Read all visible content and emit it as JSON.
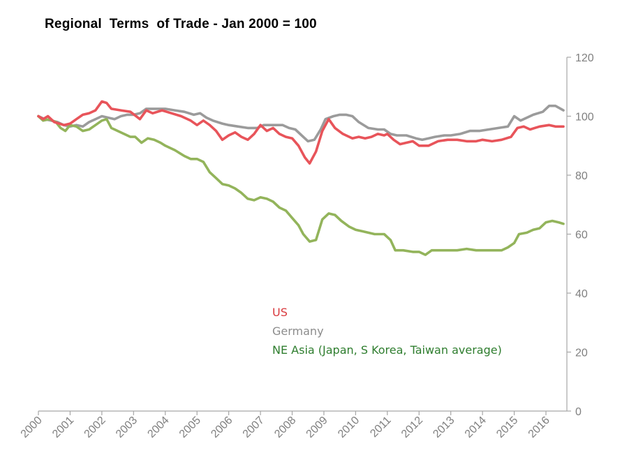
{
  "chart_data": {
    "type": "line",
    "title": "Regional  Terms  of Trade - Jan 2000 = 100",
    "xlabel": "",
    "ylabel": "",
    "xlim": [
      2000.0,
      2016.55
    ],
    "ylim": [
      0,
      120
    ],
    "yticks": [
      0,
      20,
      40,
      60,
      80,
      100,
      120
    ],
    "xticks": [
      "2000",
      "2001",
      "2002",
      "2003",
      "2004",
      "2005",
      "2006",
      "2007",
      "2008",
      "2009",
      "2010",
      "2011",
      "2012",
      "2013",
      "2014",
      "2015",
      "2016"
    ],
    "y_axis_position": "right",
    "grid": false,
    "legend_placement": "center",
    "series": [
      {
        "name": "US",
        "color": "#e8545a",
        "points": [
          [
            2000.0,
            100
          ],
          [
            2000.15,
            99
          ],
          [
            2000.3,
            100
          ],
          [
            2000.5,
            98
          ],
          [
            2000.8,
            97
          ],
          [
            2001.0,
            97.5
          ],
          [
            2001.2,
            99
          ],
          [
            2001.4,
            100.5
          ],
          [
            2001.6,
            101
          ],
          [
            2001.8,
            102
          ],
          [
            2002.0,
            105
          ],
          [
            2002.15,
            104.5
          ],
          [
            2002.3,
            102.5
          ],
          [
            2002.6,
            102
          ],
          [
            2002.9,
            101.5
          ],
          [
            2003.2,
            99
          ],
          [
            2003.4,
            102
          ],
          [
            2003.6,
            101
          ],
          [
            2003.9,
            102
          ],
          [
            2004.2,
            101
          ],
          [
            2004.5,
            100
          ],
          [
            2004.8,
            98.5
          ],
          [
            2005.0,
            97
          ],
          [
            2005.2,
            98.5
          ],
          [
            2005.4,
            97
          ],
          [
            2005.6,
            95
          ],
          [
            2005.8,
            92
          ],
          [
            2006.0,
            93.5
          ],
          [
            2006.2,
            94.5
          ],
          [
            2006.4,
            93
          ],
          [
            2006.6,
            92
          ],
          [
            2006.8,
            94
          ],
          [
            2007.0,
            97
          ],
          [
            2007.2,
            95
          ],
          [
            2007.4,
            96
          ],
          [
            2007.6,
            94
          ],
          [
            2007.8,
            93
          ],
          [
            2008.0,
            92.5
          ],
          [
            2008.2,
            90
          ],
          [
            2008.4,
            86
          ],
          [
            2008.55,
            84
          ],
          [
            2008.75,
            88
          ],
          [
            2008.95,
            95
          ],
          [
            2009.15,
            99
          ],
          [
            2009.35,
            96
          ],
          [
            2009.6,
            94
          ],
          [
            2009.9,
            92.5
          ],
          [
            2010.1,
            93
          ],
          [
            2010.3,
            92.5
          ],
          [
            2010.5,
            93
          ],
          [
            2010.7,
            94
          ],
          [
            2010.9,
            93.5
          ],
          [
            2011.0,
            94
          ],
          [
            2011.2,
            92
          ],
          [
            2011.4,
            90.5
          ],
          [
            2011.6,
            91
          ],
          [
            2011.8,
            91.5
          ],
          [
            2012.0,
            90
          ],
          [
            2012.3,
            90
          ],
          [
            2012.6,
            91.5
          ],
          [
            2012.9,
            92
          ],
          [
            2013.2,
            92
          ],
          [
            2013.5,
            91.5
          ],
          [
            2013.8,
            91.5
          ],
          [
            2014.0,
            92
          ],
          [
            2014.3,
            91.5
          ],
          [
            2014.6,
            92
          ],
          [
            2014.9,
            93
          ],
          [
            2015.1,
            96
          ],
          [
            2015.3,
            96.5
          ],
          [
            2015.5,
            95.5
          ],
          [
            2015.8,
            96.5
          ],
          [
            2016.1,
            97
          ],
          [
            2016.3,
            96.5
          ],
          [
            2016.55,
            96.5
          ]
        ]
      },
      {
        "name": "Germany",
        "color": "#9b9b9b",
        "points": [
          [
            2000.0,
            100
          ],
          [
            2000.2,
            99
          ],
          [
            2000.4,
            98.5
          ],
          [
            2000.6,
            98
          ],
          [
            2000.8,
            97
          ],
          [
            2001.0,
            96.5
          ],
          [
            2001.2,
            97
          ],
          [
            2001.4,
            96.5
          ],
          [
            2001.6,
            98
          ],
          [
            2001.8,
            99
          ],
          [
            2002.0,
            100
          ],
          [
            2002.2,
            99.5
          ],
          [
            2002.4,
            99
          ],
          [
            2002.6,
            100
          ],
          [
            2002.8,
            100.5
          ],
          [
            2003.0,
            100.5
          ],
          [
            2003.2,
            101
          ],
          [
            2003.4,
            102.5
          ],
          [
            2003.7,
            102.5
          ],
          [
            2004.0,
            102.5
          ],
          [
            2004.3,
            102
          ],
          [
            2004.6,
            101.5
          ],
          [
            2004.9,
            100.5
          ],
          [
            2005.1,
            101
          ],
          [
            2005.3,
            99.5
          ],
          [
            2005.5,
            98.5
          ],
          [
            2005.8,
            97.5
          ],
          [
            2006.0,
            97
          ],
          [
            2006.3,
            96.5
          ],
          [
            2006.6,
            96
          ],
          [
            2006.9,
            96
          ],
          [
            2007.1,
            97
          ],
          [
            2007.4,
            97
          ],
          [
            2007.7,
            97
          ],
          [
            2007.9,
            96
          ],
          [
            2008.1,
            95.5
          ],
          [
            2008.3,
            93.5
          ],
          [
            2008.5,
            91.5
          ],
          [
            2008.7,
            92
          ],
          [
            2008.9,
            95.5
          ],
          [
            2009.05,
            99
          ],
          [
            2009.3,
            100
          ],
          [
            2009.5,
            100.5
          ],
          [
            2009.7,
            100.5
          ],
          [
            2009.9,
            100
          ],
          [
            2010.1,
            98
          ],
          [
            2010.4,
            96
          ],
          [
            2010.7,
            95.5
          ],
          [
            2010.9,
            95.5
          ],
          [
            2011.1,
            94
          ],
          [
            2011.3,
            93.5
          ],
          [
            2011.6,
            93.5
          ],
          [
            2011.9,
            92.5
          ],
          [
            2012.1,
            92
          ],
          [
            2012.3,
            92.5
          ],
          [
            2012.5,
            93
          ],
          [
            2012.8,
            93.5
          ],
          [
            2013.0,
            93.5
          ],
          [
            2013.3,
            94
          ],
          [
            2013.6,
            95
          ],
          [
            2013.9,
            95
          ],
          [
            2014.2,
            95.5
          ],
          [
            2014.5,
            96
          ],
          [
            2014.8,
            96.5
          ],
          [
            2015.0,
            100
          ],
          [
            2015.2,
            98.5
          ],
          [
            2015.4,
            99.5
          ],
          [
            2015.6,
            100.5
          ],
          [
            2015.9,
            101.5
          ],
          [
            2016.1,
            103.5
          ],
          [
            2016.3,
            103.5
          ],
          [
            2016.55,
            102
          ]
        ]
      },
      {
        "name": "NE Asia (Japan, S Korea, Taiwan average)",
        "color": "#93b45b",
        "points": [
          [
            2000.0,
            100
          ],
          [
            2000.15,
            98.5
          ],
          [
            2000.35,
            99
          ],
          [
            2000.55,
            98
          ],
          [
            2000.7,
            96
          ],
          [
            2000.85,
            95
          ],
          [
            2001.0,
            97
          ],
          [
            2001.2,
            96.5
          ],
          [
            2001.4,
            95
          ],
          [
            2001.6,
            95.5
          ],
          [
            2001.8,
            97
          ],
          [
            2002.0,
            98.5
          ],
          [
            2002.15,
            99
          ],
          [
            2002.3,
            96
          ],
          [
            2002.5,
            95
          ],
          [
            2002.7,
            94
          ],
          [
            2002.9,
            93
          ],
          [
            2003.05,
            93
          ],
          [
            2003.25,
            91
          ],
          [
            2003.45,
            92.5
          ],
          [
            2003.65,
            92
          ],
          [
            2003.85,
            91
          ],
          [
            2004.0,
            90
          ],
          [
            2004.3,
            88.5
          ],
          [
            2004.6,
            86.5
          ],
          [
            2004.8,
            85.5
          ],
          [
            2005.0,
            85.5
          ],
          [
            2005.2,
            84.5
          ],
          [
            2005.4,
            81
          ],
          [
            2005.6,
            79
          ],
          [
            2005.8,
            77
          ],
          [
            2006.0,
            76.5
          ],
          [
            2006.2,
            75.5
          ],
          [
            2006.4,
            74
          ],
          [
            2006.6,
            72
          ],
          [
            2006.8,
            71.5
          ],
          [
            2007.0,
            72.5
          ],
          [
            2007.2,
            72
          ],
          [
            2007.4,
            71
          ],
          [
            2007.6,
            69
          ],
          [
            2007.8,
            68
          ],
          [
            2008.0,
            65.5
          ],
          [
            2008.2,
            63
          ],
          [
            2008.35,
            60
          ],
          [
            2008.55,
            57.5
          ],
          [
            2008.75,
            58
          ],
          [
            2008.95,
            65
          ],
          [
            2009.15,
            67
          ],
          [
            2009.35,
            66.5
          ],
          [
            2009.55,
            64.5
          ],
          [
            2009.8,
            62.5
          ],
          [
            2010.0,
            61.5
          ],
          [
            2010.2,
            61
          ],
          [
            2010.4,
            60.5
          ],
          [
            2010.6,
            60
          ],
          [
            2010.9,
            60
          ],
          [
            2011.1,
            58
          ],
          [
            2011.25,
            54.5
          ],
          [
            2011.5,
            54.5
          ],
          [
            2011.8,
            54
          ],
          [
            2012.0,
            54
          ],
          [
            2012.2,
            53
          ],
          [
            2012.4,
            54.5
          ],
          [
            2012.6,
            54.5
          ],
          [
            2012.9,
            54.5
          ],
          [
            2013.2,
            54.5
          ],
          [
            2013.5,
            55
          ],
          [
            2013.8,
            54.5
          ],
          [
            2014.0,
            54.5
          ],
          [
            2014.3,
            54.5
          ],
          [
            2014.6,
            54.5
          ],
          [
            2014.8,
            55.5
          ],
          [
            2015.0,
            57
          ],
          [
            2015.15,
            60
          ],
          [
            2015.4,
            60.5
          ],
          [
            2015.6,
            61.5
          ],
          [
            2015.8,
            62
          ],
          [
            2016.0,
            64
          ],
          [
            2016.2,
            64.5
          ],
          [
            2016.4,
            64
          ],
          [
            2016.55,
            63.5
          ]
        ]
      }
    ],
    "legend": [
      {
        "label": "US",
        "color": "#d93a3e"
      },
      {
        "label": "Germany",
        "color": "#8c8c8c"
      },
      {
        "label": "NE Asia (Japan, S Korea, Taiwan average)",
        "color": "#2e7d2e"
      }
    ],
    "axis_color": "#a6a6a6",
    "tick_label_color": "#808080"
  }
}
